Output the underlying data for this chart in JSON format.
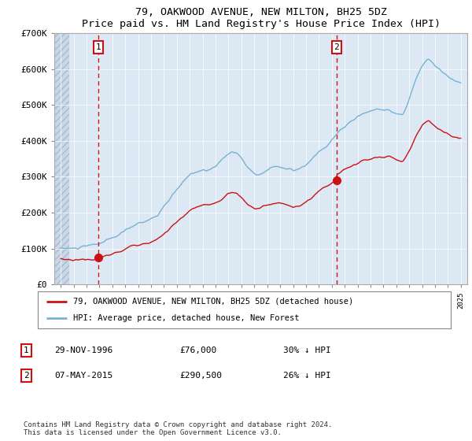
{
  "title": "79, OAKWOOD AVENUE, NEW MILTON, BH25 5DZ",
  "subtitle": "Price paid vs. HM Land Registry's House Price Index (HPI)",
  "red_label": "79, OAKWOOD AVENUE, NEW MILTON, BH25 5DZ (detached house)",
  "blue_label": "HPI: Average price, detached house, New Forest",
  "annotation1_date": "29-NOV-1996",
  "annotation1_price": "£76,000",
  "annotation1_hpi": "30% ↓ HPI",
  "annotation2_date": "07-MAY-2015",
  "annotation2_price": "£290,500",
  "annotation2_hpi": "26% ↓ HPI",
  "marker1_x": 1996.917,
  "marker1_y": 76000,
  "marker2_x": 2015.37,
  "marker2_y": 290500,
  "footnote": "Contains HM Land Registry data © Crown copyright and database right 2024.\nThis data is licensed under the Open Government Licence v3.0.",
  "ylim": [
    0,
    700000
  ],
  "xlim_start": 1993.5,
  "xlim_end": 2025.5,
  "plot_bg": "#dce9f5",
  "hatch_left_end": 1994.67
}
